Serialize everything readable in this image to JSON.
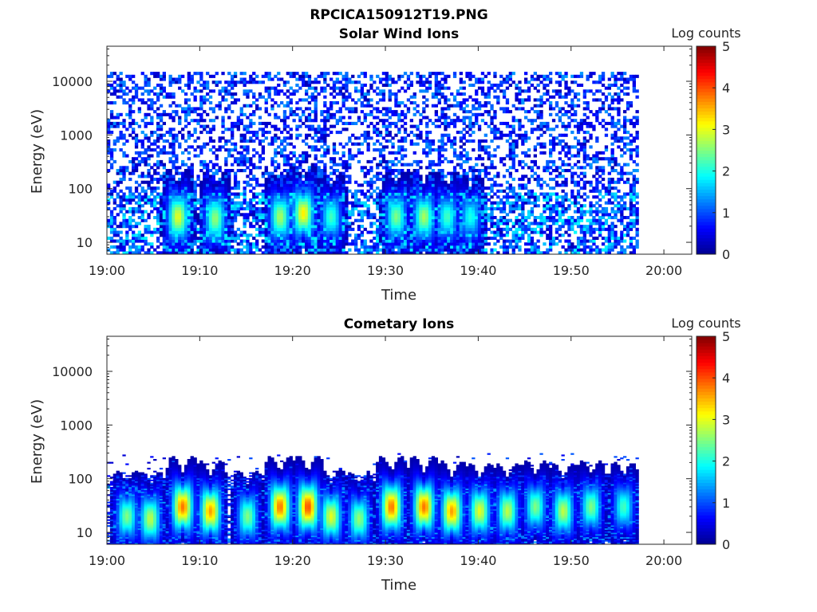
{
  "figure_title": "RPCICA150912T19.PNG",
  "colors": {
    "colormap": [
      "#00008f",
      "#0000ff",
      "#0080ff",
      "#00ffff",
      "#80ff80",
      "#ffff00",
      "#ff8000",
      "#ff0000",
      "#800000"
    ]
  },
  "chart_data": [
    {
      "type": "heatmap",
      "title": "Solar Wind Ions",
      "xlabel": "Time",
      "ylabel": "Energy (eV)",
      "x_ticks": [
        "19:00",
        "19:10",
        "19:20",
        "19:30",
        "19:40",
        "19:50",
        "20:00"
      ],
      "x_range": [
        "19:00",
        "20:03"
      ],
      "data_end": "19:57",
      "y_scale": "log",
      "y_ticks": [
        "10",
        "100",
        "1000",
        "10000"
      ],
      "y_range": [
        6,
        45000
      ],
      "colorbar": {
        "title": "Log counts",
        "range": [
          0,
          5
        ],
        "ticks": [
          "0",
          "1",
          "2",
          "3",
          "4",
          "5"
        ]
      },
      "background_level": 0.7,
      "upper_energy_limit": 15000,
      "features": [
        {
          "time": "19:07.5",
          "energy": 30,
          "level": 3.0
        },
        {
          "time": "19:11.5",
          "energy": 28,
          "level": 2.6
        },
        {
          "time": "19:18.5",
          "energy": 30,
          "level": 2.7
        },
        {
          "time": "19:21",
          "energy": 35,
          "level": 3.2
        },
        {
          "time": "19:24",
          "energy": 30,
          "level": 2.2
        },
        {
          "time": "19:31",
          "energy": 30,
          "level": 2.5
        },
        {
          "time": "19:34",
          "energy": 30,
          "level": 2.7
        },
        {
          "time": "19:36.5",
          "energy": 30,
          "level": 2.2
        },
        {
          "time": "19:39",
          "energy": 30,
          "level": 2.0
        }
      ]
    },
    {
      "type": "heatmap",
      "title": "Cometary Ions",
      "xlabel": "Time",
      "ylabel": "Energy (eV)",
      "x_ticks": [
        "19:00",
        "19:10",
        "19:20",
        "19:30",
        "19:40",
        "19:50",
        "20:00"
      ],
      "x_range": [
        "19:00",
        "20:03"
      ],
      "data_end": "19:57",
      "y_scale": "log",
      "y_ticks": [
        "10",
        "100",
        "1000",
        "10000"
      ],
      "y_range": [
        6,
        45000
      ],
      "colorbar": {
        "title": "Log counts",
        "range": [
          0,
          5
        ],
        "ticks": [
          "0",
          "1",
          "2",
          "3",
          "4",
          "5"
        ]
      },
      "background_level": 0.15,
      "upper_energy_limit": 300,
      "features": [
        {
          "time": "19:02",
          "energy": 20,
          "level": 2.5
        },
        {
          "time": "19:04.5",
          "energy": 18,
          "level": 2.8
        },
        {
          "time": "19:08",
          "energy": 30,
          "level": 3.8
        },
        {
          "time": "19:11",
          "energy": 25,
          "level": 3.6
        },
        {
          "time": "19:15",
          "energy": 20,
          "level": 2.5
        },
        {
          "time": "19:18.5",
          "energy": 30,
          "level": 3.8
        },
        {
          "time": "19:21.5",
          "energy": 30,
          "level": 4.0
        },
        {
          "time": "19:24",
          "energy": 20,
          "level": 3.0
        },
        {
          "time": "19:27",
          "energy": 18,
          "level": 2.6
        },
        {
          "time": "19:30.5",
          "energy": 30,
          "level": 3.8
        },
        {
          "time": "19:34",
          "energy": 30,
          "level": 3.8
        },
        {
          "time": "19:37",
          "energy": 25,
          "level": 3.6
        },
        {
          "time": "19:40",
          "energy": 25,
          "level": 3.0
        },
        {
          "time": "19:43",
          "energy": 25,
          "level": 2.8
        },
        {
          "time": "19:46",
          "energy": 30,
          "level": 2.5
        },
        {
          "time": "19:49",
          "energy": 25,
          "level": 2.8
        },
        {
          "time": "19:52",
          "energy": 30,
          "level": 2.5
        },
        {
          "time": "19:55.5",
          "energy": 30,
          "level": 2.2
        }
      ]
    }
  ]
}
